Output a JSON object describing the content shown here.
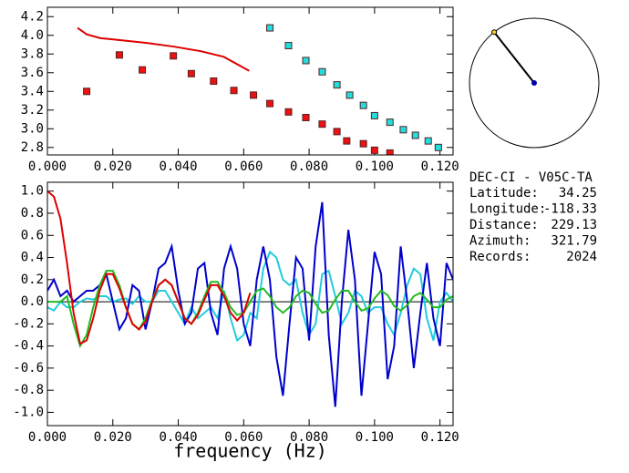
{
  "chart_data": [
    {
      "type": "scatter",
      "xlim": [
        0,
        0.124
      ],
      "ylim": [
        2.72,
        4.3
      ],
      "xticks": [
        {
          "value": 0,
          "label": "0.000"
        },
        {
          "value": 0.02,
          "label": "0.020"
        },
        {
          "value": 0.04,
          "label": "0.040"
        },
        {
          "value": 0.06,
          "label": "0.060"
        },
        {
          "value": 0.08,
          "label": "0.080"
        },
        {
          "value": 0.1,
          "label": "0.100"
        },
        {
          "value": 0.12,
          "label": "0.120"
        }
      ],
      "yticks": [
        2.8,
        {
          "value": 3,
          "label": "3.0"
        },
        3.2,
        3.4,
        3.6,
        3.8,
        {
          "value": 4,
          "label": "4.0"
        },
        4.2
      ],
      "series": [
        {
          "type": "line",
          "color": "#dd0000",
          "x": [
            0.0092,
            0.012,
            0.0162,
            0.0218,
            0.0301,
            0.0385,
            0.0469,
            0.0539,
            0.0617
          ],
          "values": [
            4.08,
            4.01,
            3.97,
            3.95,
            3.92,
            3.88,
            3.83,
            3.77,
            3.62
          ]
        },
        {
          "type": "scatter",
          "color": "#ee1111",
          "x": [
            0.012,
            0.022,
            0.029,
            0.0385,
            0.044,
            0.0508,
            0.057,
            0.063,
            0.068,
            0.0737,
            0.079,
            0.084,
            0.0885,
            0.0915,
            0.0966,
            0.1,
            0.1047
          ],
          "values": [
            3.4,
            3.79,
            3.63,
            3.78,
            3.59,
            3.51,
            3.41,
            3.36,
            3.27,
            3.18,
            3.12,
            3.05,
            2.97,
            2.87,
            2.84,
            2.77,
            2.74
          ]
        },
        {
          "type": "scatter",
          "color": "#22dddd",
          "x": [
            0.068,
            0.0737,
            0.079,
            0.084,
            0.0885,
            0.0924,
            0.0966,
            0.1,
            0.1047,
            0.1088,
            0.1125,
            0.1164,
            0.1195
          ],
          "values": [
            4.08,
            3.89,
            3.73,
            3.61,
            3.47,
            3.36,
            3.25,
            3.14,
            3.07,
            2.99,
            2.93,
            2.87,
            2.8
          ]
        }
      ]
    },
    {
      "type": "line",
      "xlabel": "frequency (Hz)",
      "xlim": [
        0,
        0.124
      ],
      "ylim": [
        -1.12,
        1.08
      ],
      "xticks": [
        {
          "value": 0,
          "label": "0.000"
        },
        {
          "value": 0.02,
          "label": "0.020"
        },
        {
          "value": 0.04,
          "label": "0.040"
        },
        {
          "value": 0.06,
          "label": "0.060"
        },
        {
          "value": 0.08,
          "label": "0.080"
        },
        {
          "value": 0.1,
          "label": "0.100"
        },
        {
          "value": 0.12,
          "label": "0.120"
        }
      ],
      "yticks": [
        {
          "value": -1,
          "label": "-1.0"
        },
        -0.8,
        -0.6,
        -0.4,
        -0.2,
        {
          "value": 0,
          "label": "0.0"
        },
        0.2,
        0.4,
        0.6,
        0.8,
        {
          "value": 1,
          "label": "1.0"
        }
      ],
      "zero_line": true,
      "x": [
        0,
        0.002,
        0.004,
        0.006,
        0.008,
        0.01,
        0.012,
        0.014,
        0.016,
        0.018,
        0.02,
        0.022,
        0.024,
        0.026,
        0.028,
        0.03,
        0.032,
        0.034,
        0.036,
        0.038,
        0.04,
        0.042,
        0.044,
        0.046,
        0.048,
        0.05,
        0.052,
        0.054,
        0.056,
        0.058,
        0.06,
        0.062,
        0.064,
        0.066,
        0.068,
        0.07,
        0.072,
        0.074,
        0.076,
        0.078,
        0.08,
        0.082,
        0.084,
        0.086,
        0.088,
        0.09,
        0.092,
        0.094,
        0.096,
        0.098,
        0.1,
        0.102,
        0.104,
        0.106,
        0.108,
        0.11,
        0.112,
        0.114,
        0.116,
        0.118,
        0.12,
        0.122,
        0.124
      ],
      "series": [
        {
          "color": "#22ccdd",
          "values": [
            -0.05,
            -0.08,
            0.0,
            -0.05,
            -0.05,
            0.0,
            0.03,
            0.02,
            0.05,
            0.05,
            0.0,
            0.02,
            0.03,
            -0.02,
            0.05,
            0.0,
            0.0,
            0.1,
            0.1,
            0.0,
            -0.1,
            -0.2,
            -0.05,
            -0.15,
            -0.1,
            -0.05,
            -0.15,
            0.1,
            -0.15,
            -0.35,
            -0.3,
            -0.1,
            -0.15,
            0.3,
            0.45,
            0.4,
            0.2,
            0.15,
            0.2,
            -0.1,
            -0.3,
            -0.2,
            0.25,
            0.28,
            0.05,
            -0.2,
            -0.1,
            0.1,
            0.05,
            -0.1,
            -0.05,
            -0.05,
            -0.2,
            -0.3,
            -0.1,
            0.15,
            0.3,
            0.25,
            -0.15,
            -0.35,
            0.0,
            0.08,
            0.0
          ]
        },
        {
          "color": "#0000cc",
          "values": [
            0.1,
            0.2,
            0.05,
            0.1,
            0.0,
            0.05,
            0.1,
            0.1,
            0.15,
            0.25,
            0.0,
            -0.25,
            -0.15,
            0.15,
            0.1,
            -0.25,
            0.0,
            0.3,
            0.35,
            0.5,
            0.1,
            -0.2,
            -0.1,
            0.3,
            0.35,
            -0.1,
            -0.3,
            0.3,
            0.5,
            0.3,
            -0.2,
            -0.4,
            0.2,
            0.5,
            0.2,
            -0.5,
            -0.85,
            -0.2,
            0.4,
            0.3,
            -0.35,
            0.5,
            0.9,
            -0.3,
            -0.95,
            0.0,
            0.65,
            0.2,
            -0.85,
            -0.2,
            0.45,
            0.25,
            -0.7,
            -0.4,
            0.5,
            0.0,
            -0.6,
            -0.1,
            0.35,
            -0.15,
            -0.4,
            0.35,
            0.2
          ]
        },
        {
          "color": "#22bb22",
          "values": [
            0.0,
            0.0,
            0.0,
            0.05,
            -0.2,
            -0.4,
            -0.3,
            -0.05,
            0.15,
            0.28,
            0.28,
            0.15,
            -0.05,
            -0.2,
            -0.25,
            -0.15,
            0.02,
            0.15,
            0.2,
            0.15,
            0.0,
            -0.15,
            -0.2,
            -0.1,
            0.05,
            0.18,
            0.18,
            0.08,
            -0.05,
            -0.12,
            -0.1,
            0.0,
            0.1,
            0.12,
            0.05,
            -0.05,
            -0.1,
            -0.05,
            0.05,
            0.1,
            0.08,
            -0.02,
            -0.1,
            -0.08,
            0.02,
            0.1,
            0.1,
            0.0,
            -0.08,
            -0.06,
            0.03,
            0.1,
            0.06,
            -0.04,
            -0.08,
            -0.03,
            0.05,
            0.08,
            0.02,
            -0.05,
            -0.05,
            0.02,
            0.05
          ]
        },
        {
          "color": "#dd0000",
          "values": [
            1.0,
            0.95,
            0.75,
            0.35,
            -0.1,
            -0.38,
            -0.35,
            -0.15,
            0.1,
            0.25,
            0.25,
            0.12,
            -0.05,
            -0.2,
            -0.25,
            -0.18,
            0.0,
            0.15,
            0.2,
            0.15,
            0.0,
            -0.15,
            -0.2,
            -0.12,
            0.02,
            0.15,
            0.15,
            0.05,
            -0.1,
            -0.17,
            -0.1,
            0.08,
            null,
            null,
            null,
            null,
            null,
            null,
            null,
            null,
            null,
            null,
            null,
            null,
            null,
            null,
            null,
            null,
            null,
            null,
            null,
            null,
            null,
            null,
            null,
            null,
            null,
            null,
            null,
            null,
            null,
            null,
            null
          ]
        }
      ]
    }
  ],
  "info": {
    "title": "DEC-CI - V05C-TA",
    "rows": [
      [
        "Latitude:",
        34.25
      ],
      [
        "Longitude:",
        -118.33
      ],
      [
        "Distance:",
        229.13
      ],
      [
        "Azimuth:",
        321.79
      ],
      [
        "Records:",
        2024
      ]
    ]
  }
}
